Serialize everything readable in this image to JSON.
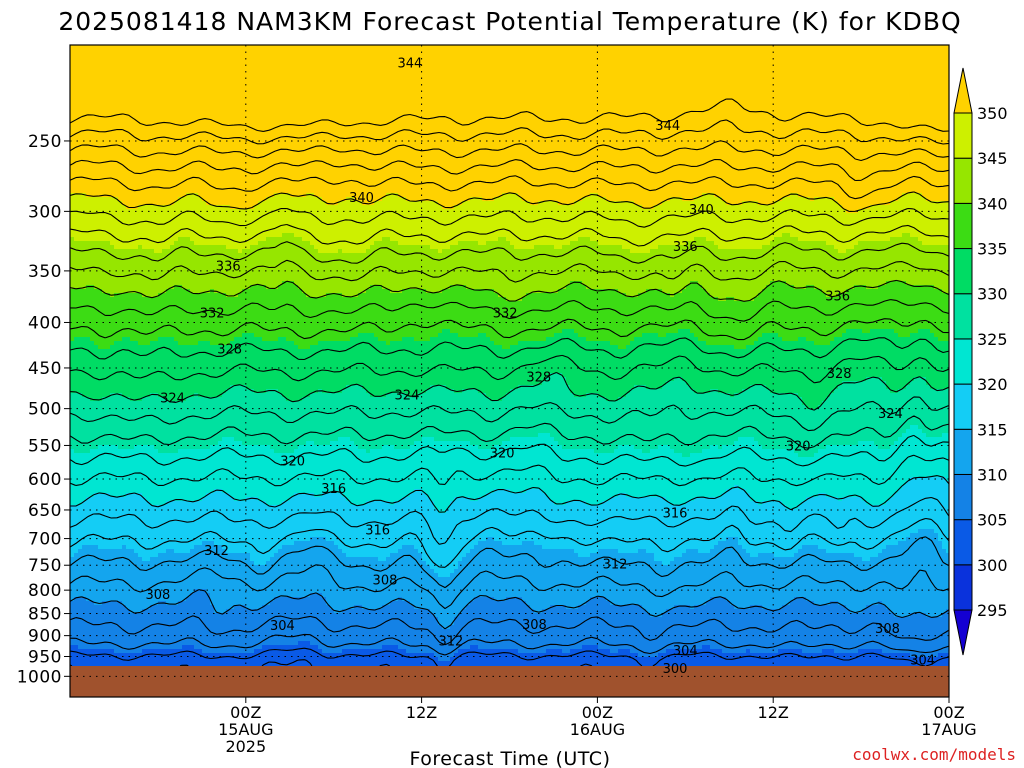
{
  "chart_data": {
    "type": "heatmap",
    "title": "2025081418 NAM3KM Forecast Potential Temperature (K) for KDBQ",
    "xlabel": "Forecast Time (UTC)",
    "ylabel": "",
    "y_scale": "log",
    "y_reversed": true,
    "ylim": [
      1055,
      195
    ],
    "y_ticks": [
      250,
      300,
      350,
      400,
      450,
      500,
      550,
      600,
      650,
      700,
      750,
      800,
      850,
      900,
      950,
      1000
    ],
    "x_range_hours": [
      -6,
      54
    ],
    "x_ticks": [
      {
        "hour": 6,
        "lines": [
          "00Z",
          "15AUG",
          "2025"
        ]
      },
      {
        "hour": 18,
        "lines": [
          "12Z"
        ]
      },
      {
        "hour": 30,
        "lines": [
          "00Z",
          "16AUG"
        ]
      },
      {
        "hour": 42,
        "lines": [
          "12Z"
        ]
      },
      {
        "hour": 54,
        "lines": [
          "00Z",
          "17AUG"
        ]
      }
    ],
    "colorbar": {
      "levels": [
        295,
        300,
        305,
        310,
        315,
        320,
        325,
        330,
        335,
        340,
        345,
        350
      ],
      "colors": [
        "#1400d2",
        "#0a32dc",
        "#0a5ae6",
        "#1482e6",
        "#14a5ee",
        "#14cdf5",
        "#00e6d2",
        "#00e1a0",
        "#00dc64",
        "#3cdc14",
        "#96e600",
        "#cdf000",
        "#ffff00",
        "#ffd200"
      ]
    },
    "contour_interval": 2,
    "contour_labels": [
      {
        "value": 344,
        "hour": 17.2,
        "p": 204
      },
      {
        "value": 344,
        "hour": 34.8,
        "p": 240
      },
      {
        "value": 340,
        "hour": 13.9,
        "p": 289
      },
      {
        "value": 340,
        "hour": 37.1,
        "p": 298
      },
      {
        "value": 336,
        "hour": 4.8,
        "p": 345
      },
      {
        "value": 336,
        "hour": 36.0,
        "p": 328
      },
      {
        "value": 336,
        "hour": 46.4,
        "p": 373
      },
      {
        "value": 332,
        "hour": 3.7,
        "p": 390
      },
      {
        "value": 332,
        "hour": 23.7,
        "p": 390
      },
      {
        "value": 328,
        "hour": 4.9,
        "p": 428
      },
      {
        "value": 328,
        "hour": 26.0,
        "p": 460
      },
      {
        "value": 328,
        "hour": 46.5,
        "p": 456
      },
      {
        "value": 324,
        "hour": 1.0,
        "p": 486
      },
      {
        "value": 324,
        "hour": 17.0,
        "p": 482
      },
      {
        "value": 324,
        "hour": 50.0,
        "p": 506
      },
      {
        "value": 320,
        "hour": 9.2,
        "p": 572
      },
      {
        "value": 320,
        "hour": 23.5,
        "p": 560
      },
      {
        "value": 320,
        "hour": 43.7,
        "p": 550
      },
      {
        "value": 316,
        "hour": 12.0,
        "p": 614
      },
      {
        "value": 316,
        "hour": 15.0,
        "p": 684
      },
      {
        "value": 316,
        "hour": 35.3,
        "p": 654
      },
      {
        "value": 312,
        "hour": 4.0,
        "p": 721
      },
      {
        "value": 312,
        "hour": 31.2,
        "p": 747
      },
      {
        "value": 312,
        "hour": 20.0,
        "p": 912
      },
      {
        "value": 308,
        "hour": 0.0,
        "p": 808
      },
      {
        "value": 308,
        "hour": 15.5,
        "p": 778
      },
      {
        "value": 308,
        "hour": 25.7,
        "p": 873
      },
      {
        "value": 308,
        "hour": 49.8,
        "p": 882
      },
      {
        "value": 304,
        "hour": 8.5,
        "p": 875
      },
      {
        "value": 304,
        "hour": 36.0,
        "p": 934
      },
      {
        "value": 304,
        "hour": 52.2,
        "p": 957
      },
      {
        "value": 300,
        "hour": 35.3,
        "p": 979
      }
    ],
    "surface_color": "#a0522d"
  },
  "credit": "coolwx.com/models"
}
